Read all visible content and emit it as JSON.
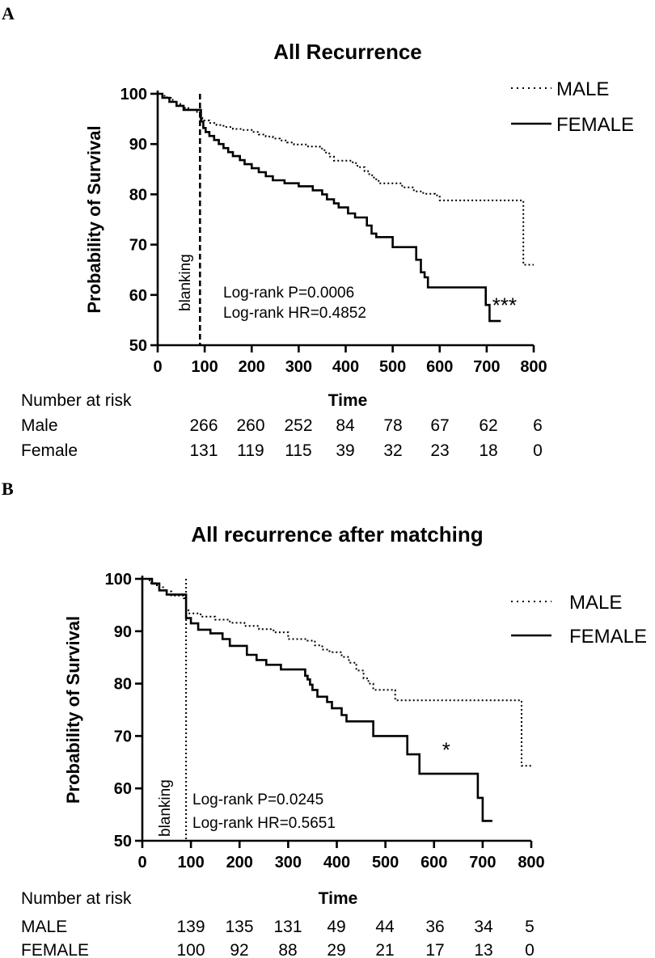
{
  "chart_data": [
    {
      "panel": "A",
      "type": "line",
      "title": "All Recurrence",
      "xlabel": "Time",
      "ylabel": "Probability of Survival",
      "xlim": [
        0,
        800
      ],
      "ylim": [
        50,
        100
      ],
      "xticks": [
        "0",
        "100",
        "200",
        "300",
        "400",
        "500",
        "600",
        "700",
        "800"
      ],
      "yticks": [
        "50",
        "60",
        "70",
        "80",
        "90",
        "100"
      ],
      "blanking_x": 90,
      "blanking_label": "blanking",
      "blanking_style": "dashed",
      "annotations": [
        "Log-rank P=0.0006",
        "Log-rank HR=0.4852"
      ],
      "significance": "***",
      "significance_at": [
        738,
        56.5
      ],
      "legend": [
        {
          "name": "MALE",
          "style": "dotted"
        },
        {
          "name": "FEMALE",
          "style": "solid"
        }
      ],
      "series": [
        {
          "name": "MALE",
          "style": "dotted",
          "points": [
            [
              0,
              100
            ],
            [
              12,
              99.6
            ],
            [
              20,
              99.2
            ],
            [
              28,
              98.8
            ],
            [
              35,
              98.4
            ],
            [
              40,
              98
            ],
            [
              48,
              97.6
            ],
            [
              55,
              97.2
            ],
            [
              65,
              96.8
            ],
            [
              80,
              96.4
            ],
            [
              90,
              95.2
            ],
            [
              95,
              94.7
            ],
            [
              110,
              94.2
            ],
            [
              125,
              93.8
            ],
            [
              140,
              93.4
            ],
            [
              160,
              93
            ],
            [
              180,
              92.8
            ],
            [
              200,
              92.4
            ],
            [
              215,
              91.9
            ],
            [
              230,
              91.5
            ],
            [
              245,
              91.1
            ],
            [
              260,
              90.7
            ],
            [
              275,
              90.3
            ],
            [
              290,
              89.9
            ],
            [
              320,
              89.5
            ],
            [
              345,
              89.1
            ],
            [
              355,
              88.3
            ],
            [
              365,
              87.5
            ],
            [
              375,
              86.7
            ],
            [
              400,
              86.7
            ],
            [
              415,
              86.2
            ],
            [
              425,
              85.4
            ],
            [
              440,
              84.6
            ],
            [
              450,
              83.8
            ],
            [
              460,
              83
            ],
            [
              470,
              82.2
            ],
            [
              500,
              82.2
            ],
            [
              520,
              81.4
            ],
            [
              545,
              80.6
            ],
            [
              565,
              80.1
            ],
            [
              590,
              79.8
            ],
            [
              600,
              78.8
            ],
            [
              770,
              78.8
            ],
            [
              778,
              66
            ],
            [
              800,
              66
            ]
          ]
        },
        {
          "name": "FEMALE",
          "style": "solid",
          "points": [
            [
              0,
              100
            ],
            [
              10,
              99.2
            ],
            [
              25,
              98.4
            ],
            [
              40,
              97.6
            ],
            [
              55,
              96.8
            ],
            [
              90,
              96.8
            ],
            [
              92,
              94.5
            ],
            [
              97,
              93.2
            ],
            [
              102,
              92.4
            ],
            [
              110,
              91.6
            ],
            [
              120,
              90.8
            ],
            [
              130,
              90
            ],
            [
              140,
              89.2
            ],
            [
              150,
              88.4
            ],
            [
              160,
              87.6
            ],
            [
              175,
              86.8
            ],
            [
              185,
              86
            ],
            [
              200,
              85.2
            ],
            [
              215,
              84.4
            ],
            [
              230,
              83.6
            ],
            [
              245,
              82.8
            ],
            [
              270,
              82.2
            ],
            [
              300,
              81.6
            ],
            [
              330,
              80.8
            ],
            [
              350,
              80
            ],
            [
              360,
              79
            ],
            [
              375,
              78.2
            ],
            [
              385,
              77.4
            ],
            [
              405,
              76.2
            ],
            [
              420,
              75.4
            ],
            [
              445,
              73.8
            ],
            [
              455,
              72.2
            ],
            [
              465,
              71.5
            ],
            [
              490,
              71.5
            ],
            [
              500,
              69.5
            ],
            [
              540,
              69.5
            ],
            [
              550,
              67
            ],
            [
              560,
              64.5
            ],
            [
              568,
              63.5
            ],
            [
              575,
              61.5
            ],
            [
              690,
              61.5
            ],
            [
              698,
              58
            ],
            [
              706,
              54.8
            ],
            [
              730,
              54.8
            ]
          ]
        }
      ],
      "number_at_risk": {
        "header": "Number at risk",
        "rows": [
          {
            "label": "Male",
            "values": [
              "266",
              "260",
              "252",
              "84",
              "78",
              "67",
              "62",
              "6"
            ]
          },
          {
            "label": "Female",
            "values": [
              "131",
              "119",
              "115",
              "39",
              "32",
              "23",
              "18",
              "0"
            ]
          }
        ]
      }
    },
    {
      "panel": "B",
      "type": "line",
      "title": "All recurrence after matching",
      "xlabel": "Time",
      "ylabel": "Probability of Survival",
      "xlim": [
        0,
        800
      ],
      "ylim": [
        50,
        100
      ],
      "xticks": [
        "0",
        "100",
        "200",
        "300",
        "400",
        "500",
        "600",
        "700",
        "800"
      ],
      "yticks": [
        "50",
        "60",
        "70",
        "80",
        "90",
        "100"
      ],
      "blanking_x": 90,
      "blanking_label": "blanking",
      "blanking_style": "dotted",
      "annotations": [
        "Log-rank P=0.0245",
        "Log-rank HR=0.5651"
      ],
      "significance": "*",
      "significance_at": [
        625,
        66
      ],
      "legend": [
        {
          "name": "MALE",
          "style": "dotted"
        },
        {
          "name": "FEMALE",
          "style": "solid"
        }
      ],
      "series": [
        {
          "name": "MALE",
          "style": "dotted",
          "points": [
            [
              0,
              100
            ],
            [
              15,
              99.2
            ],
            [
              30,
              98.4
            ],
            [
              45,
              97.6
            ],
            [
              60,
              96.8
            ],
            [
              85,
              96.3
            ],
            [
              90,
              94
            ],
            [
              95,
              93.4
            ],
            [
              120,
              92.8
            ],
            [
              150,
              92.2
            ],
            [
              180,
              91.6
            ],
            [
              210,
              91
            ],
            [
              240,
              90.4
            ],
            [
              270,
              89.8
            ],
            [
              300,
              88.5
            ],
            [
              340,
              88.2
            ],
            [
              355,
              87.3
            ],
            [
              370,
              86.5
            ],
            [
              385,
              86
            ],
            [
              410,
              85.1
            ],
            [
              425,
              84
            ],
            [
              440,
              82.5
            ],
            [
              455,
              81
            ],
            [
              465,
              80
            ],
            [
              475,
              78.8
            ],
            [
              505,
              78.8
            ],
            [
              520,
              76.8
            ],
            [
              770,
              76.8
            ],
            [
              780,
              64.3
            ],
            [
              800,
              64.3
            ]
          ]
        },
        {
          "name": "FEMALE",
          "style": "solid",
          "points": [
            [
              0,
              100
            ],
            [
              20,
              99.1
            ],
            [
              35,
              97.8
            ],
            [
              50,
              97
            ],
            [
              85,
              97
            ],
            [
              90,
              92.5
            ],
            [
              100,
              91.5
            ],
            [
              115,
              90.3
            ],
            [
              140,
              89.6
            ],
            [
              165,
              88.5
            ],
            [
              180,
              87.2
            ],
            [
              210,
              87.2
            ],
            [
              215,
              85.5
            ],
            [
              235,
              84.5
            ],
            [
              255,
              83.6
            ],
            [
              285,
              82.7
            ],
            [
              330,
              82.7
            ],
            [
              335,
              81.5
            ],
            [
              340,
              80.8
            ],
            [
              345,
              79.8
            ],
            [
              350,
              78.8
            ],
            [
              360,
              77.5
            ],
            [
              380,
              76.5
            ],
            [
              390,
              75.3
            ],
            [
              410,
              74
            ],
            [
              420,
              72.8
            ],
            [
              470,
              72.8
            ],
            [
              475,
              70
            ],
            [
              540,
              70
            ],
            [
              545,
              66.5
            ],
            [
              560,
              66.5
            ],
            [
              570,
              62.8
            ],
            [
              680,
              62.8
            ],
            [
              690,
              58.2
            ],
            [
              700,
              53.8
            ],
            [
              720,
              53.8
            ]
          ]
        }
      ],
      "number_at_risk": {
        "header": "Number at risk",
        "rows": [
          {
            "label": "MALE",
            "values": [
              "139",
              "135",
              "131",
              "49",
              "44",
              "36",
              "34",
              "5"
            ]
          },
          {
            "label": "FEMALE",
            "values": [
              "100",
              "92",
              "88",
              "29",
              "21",
              "17",
              "13",
              "0"
            ]
          }
        ]
      }
    }
  ]
}
